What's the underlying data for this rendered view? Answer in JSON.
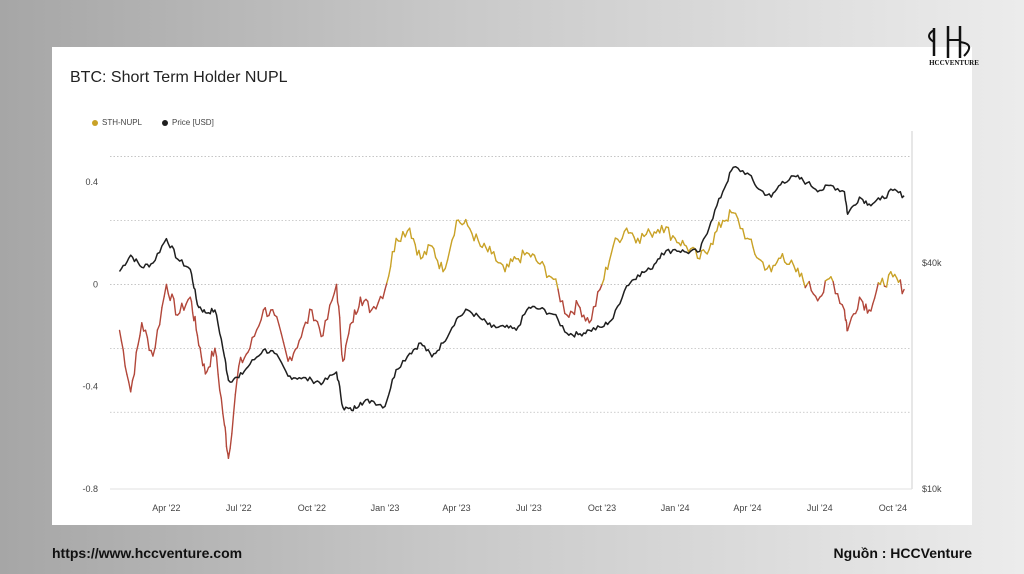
{
  "brand": {
    "logo_text": "HCCVENTURE"
  },
  "footer": {
    "url": "https://www.hccventure.com",
    "source": "Nguồn : HCCVenture"
  },
  "colors": {
    "nupl": "#c9a227",
    "nupl_negative": "#b2473a",
    "price": "#1f1f1f",
    "grid": "#bdbdbd"
  },
  "chart_data": {
    "type": "line",
    "title": "BTC: Short Term Holder NUPL",
    "legend": [
      "STH-NUPL",
      "Price [USD]"
    ],
    "legend_position": "top-left",
    "x_ticks": [
      "Apr '22",
      "Jul '22",
      "Oct '22",
      "Jan '23",
      "Apr '23",
      "Jul '23",
      "Oct '23",
      "Jan '24",
      "Apr '24",
      "Jul '24",
      "Oct '24"
    ],
    "y_left": {
      "ticks": [
        "0.4",
        "0",
        "-0.4",
        "-0.8"
      ],
      "range": [
        -0.8,
        0.6
      ]
    },
    "y_right": {
      "ticks": [
        "$40k",
        "$10k"
      ],
      "scale": "log",
      "range": [
        10000,
        90000
      ]
    },
    "series": [
      {
        "name": "STH-NUPL",
        "axis": "left",
        "x": [
          "2022-02-01",
          "2022-02-15",
          "2022-03-01",
          "2022-03-15",
          "2022-04-01",
          "2022-04-15",
          "2022-05-01",
          "2022-05-10",
          "2022-05-20",
          "2022-06-01",
          "2022-06-13",
          "2022-06-18",
          "2022-07-01",
          "2022-07-15",
          "2022-08-01",
          "2022-08-15",
          "2022-09-01",
          "2022-09-15",
          "2022-10-01",
          "2022-10-15",
          "2022-11-01",
          "2022-11-09",
          "2022-11-20",
          "2022-12-01",
          "2022-12-15",
          "2023-01-01",
          "2023-01-15",
          "2023-02-01",
          "2023-02-15",
          "2023-03-01",
          "2023-03-15",
          "2023-04-01",
          "2023-04-15",
          "2023-05-01",
          "2023-05-15",
          "2023-06-01",
          "2023-06-15",
          "2023-07-01",
          "2023-07-15",
          "2023-08-01",
          "2023-08-18",
          "2023-09-01",
          "2023-09-15",
          "2023-10-01",
          "2023-10-15",
          "2023-11-01",
          "2023-11-15",
          "2023-12-01",
          "2023-12-15",
          "2024-01-01",
          "2024-01-15",
          "2024-02-01",
          "2024-02-15",
          "2024-03-01",
          "2024-03-14",
          "2024-04-01",
          "2024-04-15",
          "2024-05-01",
          "2024-05-15",
          "2024-06-01",
          "2024-06-15",
          "2024-07-01",
          "2024-07-15",
          "2024-08-01",
          "2024-08-05",
          "2024-08-20",
          "2024-09-01",
          "2024-09-15",
          "2024-10-01",
          "2024-10-15"
        ],
        "y": [
          -0.18,
          -0.42,
          -0.15,
          -0.28,
          0.0,
          -0.12,
          -0.05,
          -0.2,
          -0.35,
          -0.25,
          -0.55,
          -0.68,
          -0.32,
          -0.25,
          -0.1,
          -0.12,
          -0.3,
          -0.22,
          -0.1,
          -0.2,
          0.0,
          -0.3,
          -0.15,
          -0.05,
          -0.1,
          -0.02,
          0.18,
          0.22,
          0.1,
          0.15,
          0.05,
          0.25,
          0.23,
          0.15,
          0.12,
          0.05,
          0.1,
          0.12,
          0.08,
          0.02,
          -0.12,
          -0.08,
          -0.15,
          0.0,
          0.15,
          0.22,
          0.18,
          0.2,
          0.23,
          0.18,
          0.15,
          0.1,
          0.16,
          0.25,
          0.28,
          0.18,
          0.1,
          0.05,
          0.12,
          0.05,
          0.0,
          -0.05,
          0.03,
          -0.1,
          -0.18,
          -0.05,
          -0.1,
          0.0,
          0.03,
          -0.02
        ]
      },
      {
        "name": "Price [USD]",
        "axis": "right",
        "x": [
          "2022-02-01",
          "2022-02-15",
          "2022-03-01",
          "2022-03-15",
          "2022-04-01",
          "2022-04-15",
          "2022-05-01",
          "2022-05-10",
          "2022-05-20",
          "2022-06-01",
          "2022-06-13",
          "2022-06-18",
          "2022-07-01",
          "2022-07-15",
          "2022-08-01",
          "2022-08-15",
          "2022-09-01",
          "2022-09-15",
          "2022-10-01",
          "2022-10-15",
          "2022-11-01",
          "2022-11-09",
          "2022-11-20",
          "2022-12-01",
          "2022-12-15",
          "2023-01-01",
          "2023-01-15",
          "2023-02-01",
          "2023-02-15",
          "2023-03-01",
          "2023-03-15",
          "2023-04-01",
          "2023-04-15",
          "2023-05-01",
          "2023-05-15",
          "2023-06-01",
          "2023-06-15",
          "2023-07-01",
          "2023-07-15",
          "2023-08-01",
          "2023-08-18",
          "2023-09-01",
          "2023-09-15",
          "2023-10-01",
          "2023-10-15",
          "2023-11-01",
          "2023-11-15",
          "2023-12-01",
          "2023-12-15",
          "2024-01-01",
          "2024-01-15",
          "2024-02-01",
          "2024-02-15",
          "2024-03-01",
          "2024-03-14",
          "2024-04-01",
          "2024-04-15",
          "2024-05-01",
          "2024-05-15",
          "2024-06-01",
          "2024-06-15",
          "2024-07-01",
          "2024-07-15",
          "2024-08-01",
          "2024-08-05",
          "2024-08-20",
          "2024-09-01",
          "2024-09-15",
          "2024-10-01",
          "2024-10-15"
        ],
        "y": [
          38000,
          42000,
          39000,
          40000,
          46500,
          41000,
          38500,
          31000,
          29500,
          30000,
          22500,
          19500,
          19800,
          21500,
          23500,
          23000,
          20000,
          19800,
          19500,
          19200,
          20500,
          16500,
          16200,
          17000,
          17200,
          16600,
          20800,
          23000,
          24500,
          22500,
          24500,
          28400,
          30000,
          28500,
          27000,
          27000,
          26500,
          30500,
          30200,
          29200,
          26000,
          25800,
          26500,
          27000,
          28500,
          34800,
          37200,
          38500,
          42500,
          43500,
          42800,
          43000,
          51500,
          62000,
          72000,
          69500,
          63000,
          60000,
          66000,
          68000,
          65500,
          62500,
          64500,
          62000,
          54000,
          60000,
          57500,
          59000,
          62500,
          60500
        ]
      }
    ]
  }
}
